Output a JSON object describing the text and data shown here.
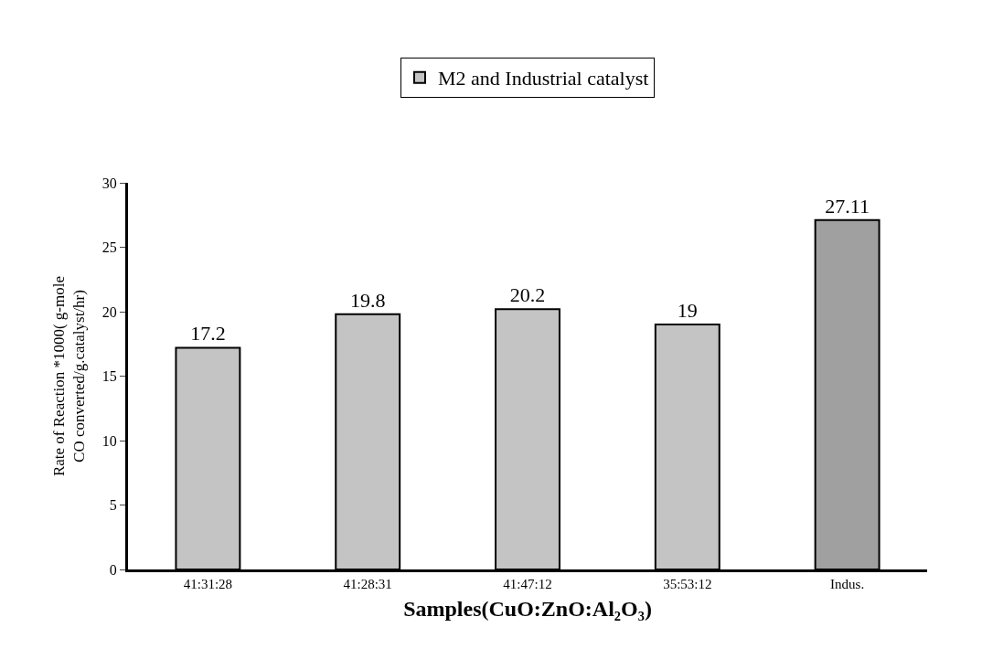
{
  "chart_data": {
    "type": "bar",
    "xlabel": "Samples(CuO:ZnO:Al₂O₃)",
    "ylabel": "Rate of Reaction *1000( g-mole CO converted/g.catalyst/hr)",
    "categories": [
      "41:31:28",
      "41:28:31",
      "41:47:12",
      "35:53:12",
      "Indus."
    ],
    "series": [
      {
        "name": "M2 and Industrial catalyst",
        "colors": [
          "#c4c4c4",
          "#c4c4c4",
          "#c4c4c4",
          "#c4c4c4",
          "#a0a0a0"
        ],
        "values": [
          17.2,
          19.8,
          20.2,
          19,
          27.11
        ]
      }
    ],
    "ylim": [
      0,
      30
    ],
    "yticks": [
      0,
      5,
      10,
      15,
      20,
      25,
      30
    ],
    "data_labels": true,
    "legend": "top"
  }
}
